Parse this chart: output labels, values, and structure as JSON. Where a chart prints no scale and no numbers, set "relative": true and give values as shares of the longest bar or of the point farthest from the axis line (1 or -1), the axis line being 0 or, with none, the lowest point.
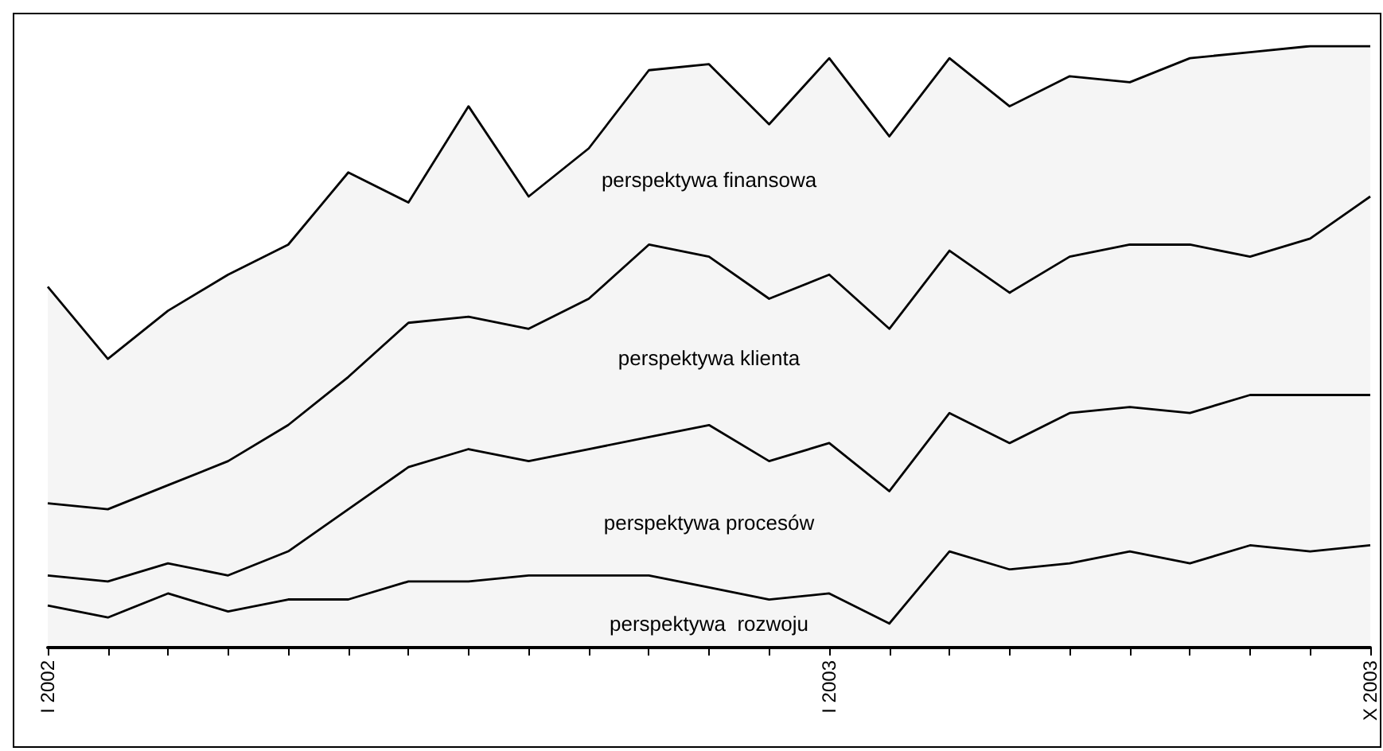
{
  "chart_data": {
    "type": "area",
    "relative": true,
    "stacked": true,
    "grid": false,
    "legend": false,
    "marker": "none",
    "categories": [
      "I 2002",
      null,
      null,
      null,
      null,
      null,
      null,
      null,
      null,
      null,
      null,
      null,
      null,
      "I 2003",
      null,
      null,
      null,
      null,
      null,
      null,
      null,
      null,
      "X 2003"
    ],
    "series": [
      {
        "name": "perspektywa  rozwoju",
        "color": "#000000",
        "values": [
          0.07,
          0.05,
          0.09,
          0.06,
          0.08,
          0.08,
          0.11,
          0.11,
          0.12,
          0.12,
          0.12,
          0.1,
          0.08,
          0.09,
          0.04,
          0.16,
          0.13,
          0.14,
          0.16,
          0.14,
          0.17,
          0.16,
          0.17
        ]
      },
      {
        "name": "perspektywa procesów",
        "color": "#000000",
        "values": [
          0.05,
          0.06,
          0.05,
          0.06,
          0.08,
          0.15,
          0.19,
          0.22,
          0.19,
          0.21,
          0.23,
          0.27,
          0.23,
          0.25,
          0.22,
          0.23,
          0.21,
          0.25,
          0.24,
          0.25,
          0.25,
          0.26,
          0.25
        ]
      },
      {
        "name": "perspektywa klienta",
        "color": "#000000",
        "values": [
          0.12,
          0.12,
          0.13,
          0.19,
          0.21,
          0.22,
          0.24,
          0.22,
          0.22,
          0.25,
          0.32,
          0.28,
          0.27,
          0.28,
          0.27,
          0.27,
          0.25,
          0.26,
          0.27,
          0.28,
          0.23,
          0.26,
          0.33
        ]
      },
      {
        "name": "perspektywa finansowa",
        "color": "#000000",
        "values": [
          0.36,
          0.25,
          0.29,
          0.31,
          0.3,
          0.34,
          0.2,
          0.35,
          0.22,
          0.25,
          0.29,
          0.32,
          0.29,
          0.36,
          0.32,
          0.32,
          0.31,
          0.3,
          0.27,
          0.31,
          0.34,
          0.32,
          0.25
        ]
      }
    ]
  }
}
